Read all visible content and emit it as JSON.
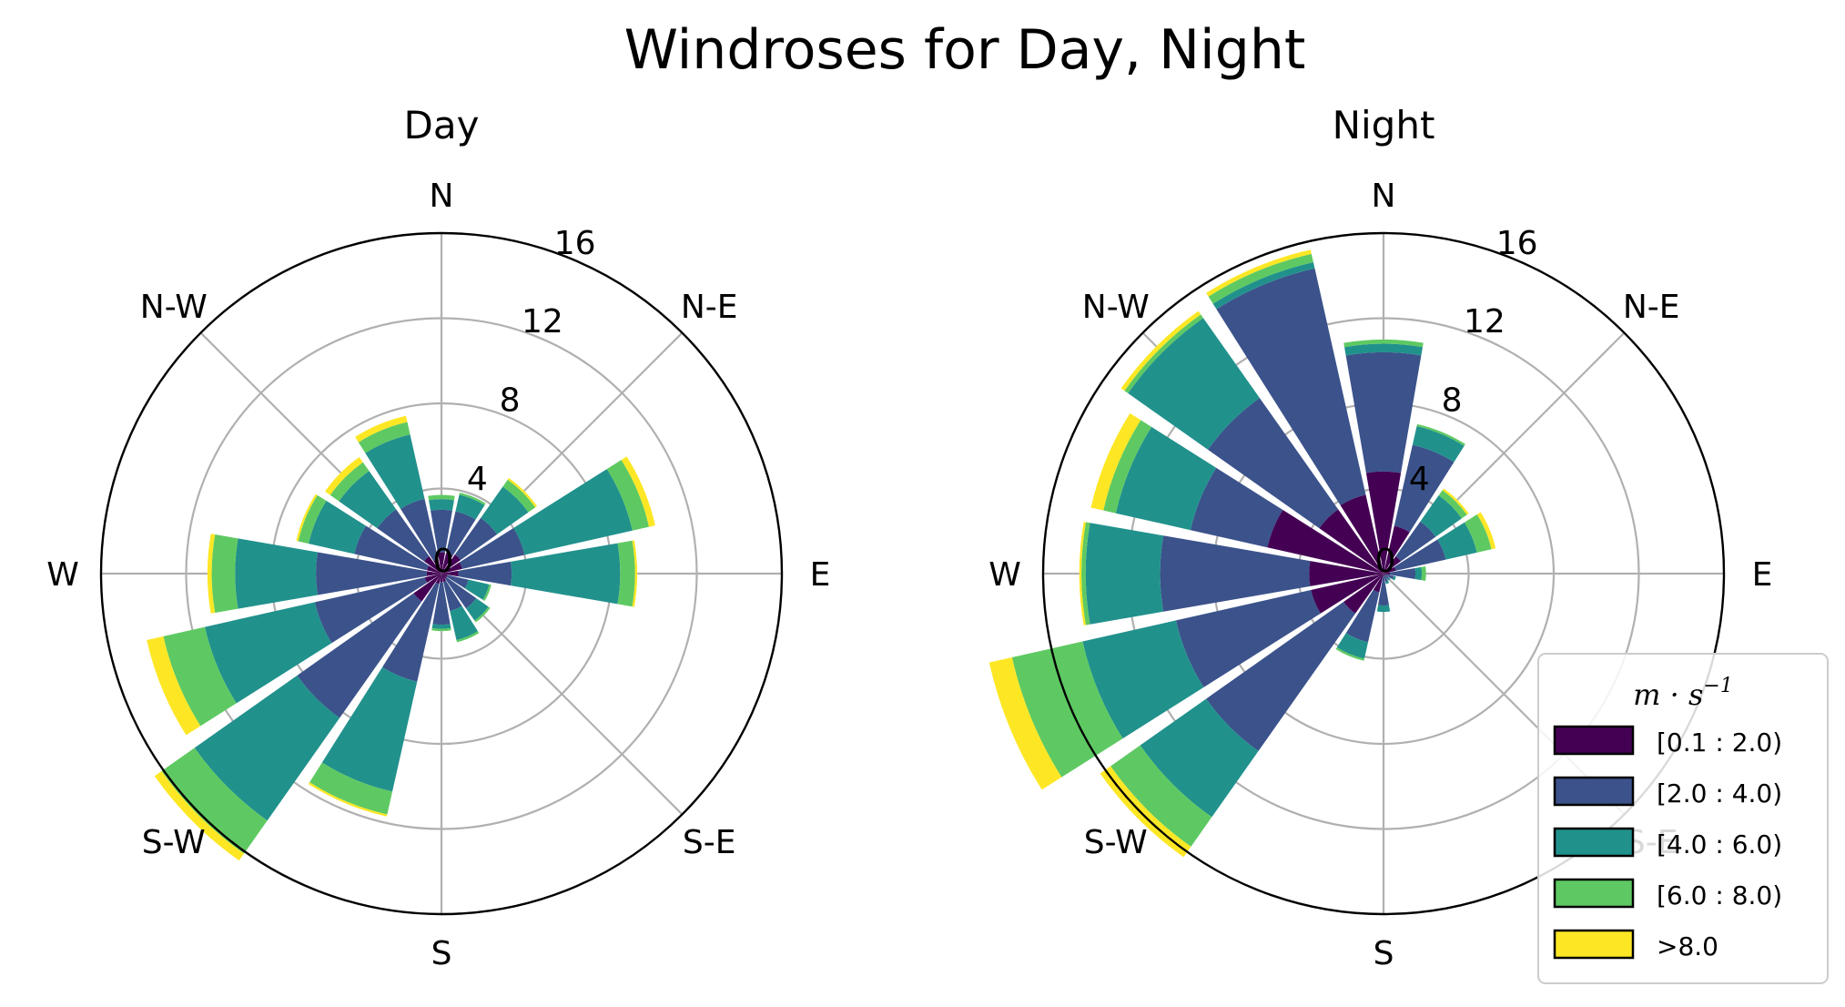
{
  "chart_data": {
    "type": "windrose",
    "title": "Windroses for Day, Night",
    "direction_labels": [
      "N",
      "N-E",
      "E",
      "S-E",
      "S",
      "S-W",
      "W",
      "N-W"
    ],
    "radial_ticks": [
      "0",
      "4",
      "8",
      "12",
      "16"
    ],
    "rmax": 16,
    "sectors_deg": [
      0,
      22.5,
      45,
      67.5,
      90,
      112.5,
      135,
      157.5,
      180,
      202.5,
      225,
      247.5,
      270,
      292.5,
      315,
      337.5
    ],
    "legend": {
      "title": "m · s⁻¹",
      "title_base": "m · s",
      "title_exp": "−1",
      "placement": "lower-right",
      "bins": [
        {
          "label": "[0.1 : 2.0)",
          "color": "#440154"
        },
        {
          "label": "[2.0 : 4.0)",
          "color": "#3b528b"
        },
        {
          "label": "[4.0 : 6.0)",
          "color": "#21918c"
        },
        {
          "label": "[6.0 : 8.0)",
          "color": "#5ec962"
        },
        {
          "label": ">8.0",
          "color": "#fde725"
        }
      ]
    },
    "panels": [
      {
        "name": "Day",
        "cumulative": [
          [
            1.0,
            3.0,
            3.5,
            3.7,
            3.7
          ],
          [
            1.0,
            3.0,
            3.8,
            3.9,
            3.9
          ],
          [
            1.1,
            3.2,
            5.0,
            5.4,
            5.5
          ],
          [
            1.0,
            4.0,
            9.2,
            10.0,
            10.3
          ],
          [
            0.8,
            3.3,
            8.4,
            9.1,
            9.2
          ],
          [
            0.3,
            1.3,
            2.3,
            2.4,
            2.4
          ],
          [
            0.3,
            2.0,
            2.7,
            2.8,
            2.8
          ],
          [
            0.4,
            1.8,
            3.2,
            3.3,
            3.3
          ],
          [
            0.4,
            2.4,
            2.6,
            2.7,
            2.7
          ],
          [
            0.5,
            5.2,
            10.5,
            11.6,
            11.7
          ],
          [
            1.6,
            8.3,
            14.2,
            16.1,
            16.5
          ],
          [
            0.8,
            6.1,
            11.4,
            13.4,
            14.2
          ],
          [
            0.7,
            5.9,
            9.7,
            10.8,
            11.0
          ],
          [
            0.7,
            4.2,
            6.4,
            6.9,
            7.0
          ],
          [
            1.0,
            3.7,
            5.9,
            6.4,
            6.7
          ],
          [
            0.7,
            3.6,
            6.7,
            7.3,
            7.6
          ]
        ]
      },
      {
        "name": "Night",
        "cumulative": [
          [
            4.8,
            10.4,
            10.8,
            11.0,
            11.0
          ],
          [
            2.3,
            6.2,
            7.1,
            7.2,
            7.2
          ],
          [
            1.0,
            3.0,
            4.5,
            4.8,
            4.9
          ],
          [
            0.6,
            3.0,
            4.5,
            5.2,
            5.4
          ],
          [
            0.3,
            1.5,
            1.8,
            2.0,
            2.0
          ],
          [
            0.1,
            0.5,
            0.6,
            0.6,
            0.6
          ],
          [
            0.1,
            0.3,
            0.4,
            0.4,
            0.4
          ],
          [
            0.1,
            0.4,
            0.5,
            0.5,
            0.5
          ],
          [
            0.1,
            1.5,
            1.8,
            1.8,
            1.8
          ],
          [
            0.9,
            3.3,
            4.1,
            4.2,
            4.2
          ],
          [
            2.3,
            10.2,
            14.0,
            15.7,
            16.3
          ],
          [
            3.5,
            10.0,
            14.5,
            17.9,
            19.0
          ],
          [
            3.5,
            10.5,
            14.0,
            14.2,
            14.3
          ],
          [
            5.6,
            9.3,
            12.9,
            13.5,
            14.1
          ],
          [
            3.7,
            10.1,
            14.7,
            14.9,
            15.1
          ],
          [
            3.8,
            14.7,
            15.0,
            15.4,
            15.6
          ]
        ]
      }
    ]
  }
}
